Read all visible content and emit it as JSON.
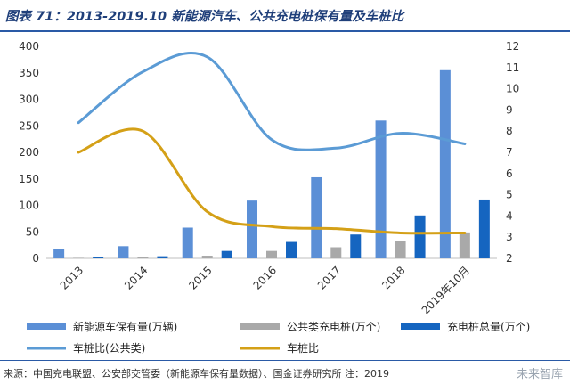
{
  "title": "图表 71：2013-2019.10 新能源汽车、公共充电桩保有量及车桩比",
  "source": "来源：中国充电联盟、公安部交管委（新能源车保有量数据）、国金证券研究所  注：2019",
  "watermark": "未来智库",
  "colors": {
    "ev": "#5b8fd6",
    "public_pile": "#a9a9a9",
    "total_pile": "#1565c0",
    "ratio_public": "#5b9bd5",
    "ratio": "#d4a017",
    "frame": "#2a5aa6"
  },
  "chart_data": {
    "type": "bar",
    "categories": [
      "2013",
      "2014",
      "2015",
      "2016",
      "2017",
      "2018",
      "2019年10月"
    ],
    "ylim": [
      0,
      400
    ],
    "y_ticks": [
      0,
      50,
      100,
      150,
      200,
      250,
      300,
      350,
      400
    ],
    "y2lim": [
      2,
      12
    ],
    "y2_ticks": [
      2,
      3,
      4,
      5,
      6,
      7,
      8,
      9,
      10,
      11,
      12
    ],
    "grid": false,
    "legend_position": "bottom",
    "series": [
      {
        "name": "新能源车保有量(万辆)",
        "type": "bar",
        "axis": "left",
        "color_key": "ev",
        "values": [
          18,
          23,
          58,
          109,
          153,
          260,
          355
        ]
      },
      {
        "name": "公共类充电桩(万个)",
        "type": "bar",
        "axis": "left",
        "color_key": "public_pile",
        "values": [
          1,
          2,
          5,
          14,
          21,
          33,
          49
        ]
      },
      {
        "name": "充电桩总量(万个)",
        "type": "bar",
        "axis": "left",
        "color_key": "total_pile",
        "values": [
          2,
          4,
          14,
          31,
          45,
          81,
          111
        ]
      },
      {
        "name": "车桩比(公共类)",
        "type": "line",
        "axis": "right",
        "color_key": "ratio_public",
        "values": [
          8.4,
          10.8,
          11.5,
          7.6,
          7.2,
          7.9,
          7.4
        ]
      },
      {
        "name": "车桩比",
        "type": "line",
        "axis": "right",
        "color_key": "ratio",
        "values": [
          7.0,
          8.0,
          4.2,
          3.5,
          3.4,
          3.2,
          3.2
        ]
      }
    ]
  }
}
